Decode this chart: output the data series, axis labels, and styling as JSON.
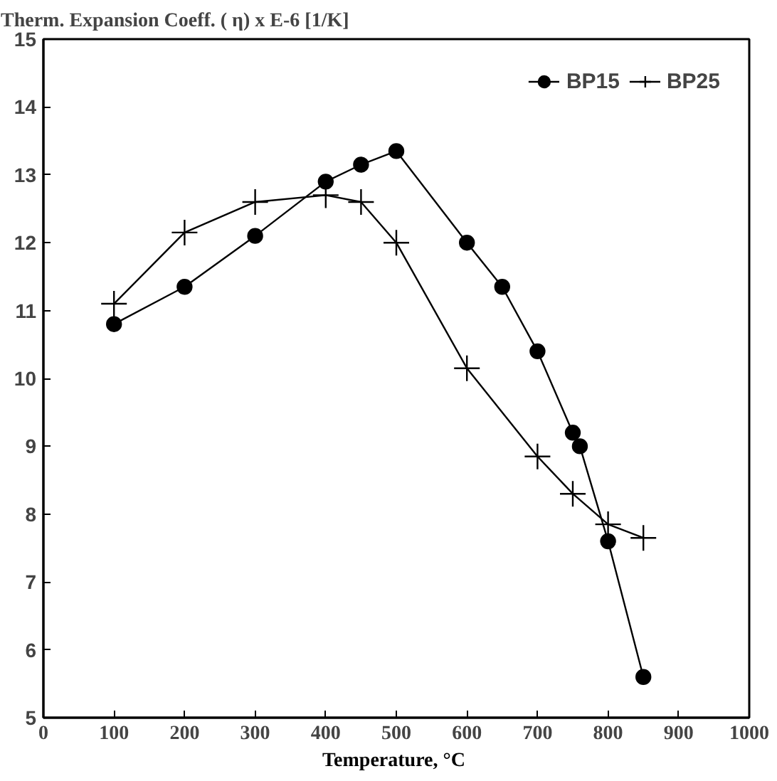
{
  "chart_data": {
    "type": "line",
    "title": "Therm. Expansion Coeff. ( η) x E-6 [1/K]",
    "xlabel": "Temperature,  °C",
    "series": [
      {
        "name": "BP15",
        "color": "#000000",
        "marker": "circle",
        "x": [
          100,
          200,
          300,
          400,
          450,
          500,
          600,
          650,
          700,
          750,
          760,
          800,
          850
        ],
        "values": [
          10.8,
          11.35,
          12.1,
          12.9,
          13.15,
          13.35,
          12.0,
          11.35,
          10.4,
          9.2,
          9.0,
          7.6,
          5.6
        ]
      },
      {
        "name": "BP25",
        "color": "#000000",
        "marker": "cross",
        "x": [
          100,
          200,
          300,
          400,
          450,
          500,
          600,
          700,
          750,
          800,
          850
        ],
        "values": [
          11.1,
          12.15,
          12.6,
          12.7,
          12.6,
          12.0,
          10.15,
          8.85,
          8.3,
          7.85,
          7.65
        ]
      }
    ],
    "xlim": [
      0,
      1000
    ],
    "xticks": [
      0,
      100,
      200,
      300,
      400,
      500,
      600,
      700,
      800,
      900,
      1000
    ],
    "ylim": [
      5,
      15
    ],
    "yticks": [
      5,
      6,
      7,
      8,
      9,
      10,
      11,
      12,
      13,
      14,
      15
    ],
    "grid": false,
    "legend": "top right"
  }
}
